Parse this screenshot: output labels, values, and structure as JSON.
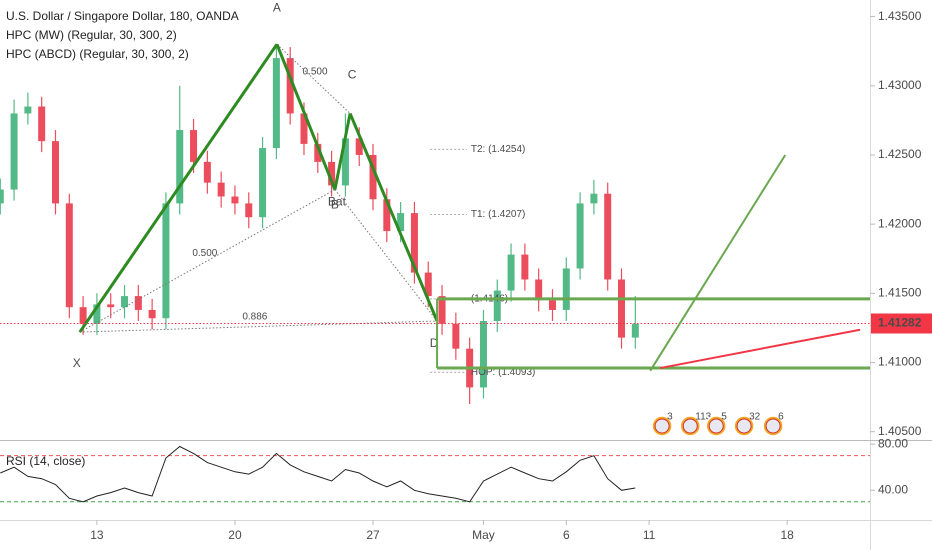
{
  "chart_data": [
    {
      "type": "candlestick",
      "title": "U.S. Dollar / Singapore Dollar, 180, OANDA",
      "indicators": [
        "HPC (MW) (Regular, 30, 300, 2)",
        "HPC (ABCD) (Regular, 30, 300, 2)"
      ],
      "x": [
        -3.5,
        -3,
        -2.5,
        -2,
        -1.5,
        -1,
        -0.5,
        0,
        0.5,
        1,
        1.5,
        2,
        2.5,
        3,
        3.5,
        4,
        4.5,
        5,
        5.5,
        6,
        6.5,
        7,
        7.5,
        8,
        8.5,
        9,
        9.5,
        10,
        10.5,
        11,
        11.5,
        12,
        12.5,
        13,
        13.5,
        14,
        14.5,
        15,
        15.5,
        16,
        16.5,
        17,
        17.5,
        18,
        18.5,
        19,
        19.5
      ],
      "open": [
        1.4215,
        1.4225,
        1.428,
        1.4285,
        1.426,
        1.4215,
        1.414,
        1.4128,
        1.4142,
        1.414,
        1.4148,
        1.4138,
        1.4132,
        1.4215,
        1.4268,
        1.4245,
        1.423,
        1.422,
        1.4215,
        1.4205,
        1.4255,
        1.432,
        1.428,
        1.4258,
        1.4245,
        1.4228,
        1.4262,
        1.425,
        1.4218,
        1.4195,
        1.4208,
        1.4165,
        1.4148,
        1.4128,
        1.411,
        1.4082,
        1.413,
        1.4152,
        1.4178,
        1.416,
        1.4145,
        1.4138,
        1.4168,
        1.4215,
        1.4222,
        1.416,
        1.4118
      ],
      "high": [
        1.4233,
        1.429,
        1.4295,
        1.4292,
        1.4268,
        1.4222,
        1.4148,
        1.415,
        1.415,
        1.4156,
        1.4156,
        1.4146,
        1.4223,
        1.43,
        1.4276,
        1.4253,
        1.4238,
        1.4228,
        1.4223,
        1.4263,
        1.433,
        1.4328,
        1.4288,
        1.4266,
        1.4253,
        1.428,
        1.427,
        1.4258,
        1.4226,
        1.4216,
        1.4216,
        1.4173,
        1.4156,
        1.4136,
        1.4118,
        1.4138,
        1.416,
        1.4186,
        1.4186,
        1.4168,
        1.4153,
        1.4176,
        1.4223,
        1.4232,
        1.423,
        1.4168,
        1.4148
      ],
      "low": [
        1.4207,
        1.4217,
        1.4272,
        1.4252,
        1.4207,
        1.4132,
        1.412,
        1.412,
        1.4132,
        1.4132,
        1.413,
        1.4124,
        1.4124,
        1.4207,
        1.4237,
        1.4222,
        1.4212,
        1.4207,
        1.4197,
        1.4197,
        1.4247,
        1.4272,
        1.425,
        1.4237,
        1.422,
        1.422,
        1.4242,
        1.421,
        1.4187,
        1.4187,
        1.4157,
        1.414,
        1.412,
        1.4102,
        1.407,
        1.4074,
        1.4122,
        1.4144,
        1.4152,
        1.4137,
        1.413,
        1.413,
        1.416,
        1.4207,
        1.4152,
        1.411,
        1.411
      ],
      "close": [
        1.4225,
        1.428,
        1.4285,
        1.426,
        1.4215,
        1.414,
        1.4128,
        1.4142,
        1.414,
        1.4148,
        1.4138,
        1.4132,
        1.4215,
        1.4268,
        1.4245,
        1.423,
        1.422,
        1.4215,
        1.4205,
        1.4255,
        1.432,
        1.428,
        1.4258,
        1.4245,
        1.4228,
        1.4262,
        1.425,
        1.4218,
        1.4195,
        1.4208,
        1.4165,
        1.4148,
        1.4128,
        1.411,
        1.4082,
        1.413,
        1.4152,
        1.4178,
        1.416,
        1.4145,
        1.4138,
        1.4168,
        1.4215,
        1.4222,
        1.416,
        1.4118,
        1.4128
      ],
      "up_color": "#53b987",
      "down_color": "#eb4d5c",
      "xlim": [
        -3.51,
        28.0
      ],
      "ylim": [
        1.4044,
        1.4362
      ],
      "yticks": [
        {
          "value": 1.405,
          "label": "1.40500"
        },
        {
          "value": 1.41,
          "label": "1.41000"
        },
        {
          "value": 1.415,
          "label": "1.41500"
        },
        {
          "value": 1.42,
          "label": "1.42000"
        },
        {
          "value": 1.425,
          "label": "1.42500"
        },
        {
          "value": 1.43,
          "label": "1.43000"
        },
        {
          "value": 1.435,
          "label": "1.43500"
        }
      ],
      "last_price": 1.41282,
      "last_price_color": "#f23645",
      "pattern": {
        "color": "#2e8b22",
        "label": "Bat",
        "points": [
          {
            "label": "X",
            "x": -0.62,
            "y": 1.4122
          },
          {
            "label": "A",
            "x": 6.52,
            "y": 1.433
          },
          {
            "label": "B",
            "x": 8.62,
            "y": 1.4225
          },
          {
            "label": "C",
            "x": 9.17,
            "y": 1.428
          },
          {
            "label": "D",
            "x": 12.32,
            "y": 1.413
          }
        ],
        "ratios": [
          {
            "label": "0.500",
            "x": 7.9,
            "y": 1.431
          },
          {
            "label": "0.500",
            "x": 3.91,
            "y": 1.4179
          },
          {
            "label": "0.886",
            "x": 5.72,
            "y": 1.4133
          }
        ]
      },
      "targets": [
        {
          "label": "T2: (1.4254)",
          "y": 1.4254
        },
        {
          "label": "T1: (1.4207)",
          "y": 1.4207
        },
        {
          "label": "(1.4146)",
          "y": 1.4146
        },
        {
          "label": "HOP: (1.4093)",
          "y": 1.4093
        }
      ],
      "target_x": [
        12.07,
        13.4
      ],
      "zone": {
        "color": "#6aa84f",
        "x": [
          12.32,
          28.0
        ],
        "y": [
          1.4146,
          1.4096
        ]
      },
      "projections": [
        {
          "color": "#6aa84f",
          "x": [
            20.04,
            24.93
          ],
          "y": [
            1.4094,
            1.425
          ]
        },
        {
          "color": "#f23645",
          "x": [
            20.4,
            27.64
          ],
          "y": [
            1.4096,
            1.41237
          ]
        }
      ],
      "events": [
        {
          "label": "3",
          "x": 20.47
        },
        {
          "label": "113",
          "x": 21.49
        },
        {
          "label": "5",
          "x": 22.43
        },
        {
          "label": "32",
          "x": 23.44
        },
        {
          "label": "6",
          "x": 24.49
        }
      ]
    },
    {
      "type": "line",
      "title": "RSI (14, close)",
      "x": [
        -3.5,
        -3,
        -2.5,
        -2,
        -1.5,
        -1,
        -0.5,
        0,
        0.5,
        1,
        1.5,
        2,
        2.5,
        3,
        3.5,
        4,
        4.5,
        5,
        5.5,
        6,
        6.5,
        7,
        7.5,
        8,
        8.5,
        9,
        9.5,
        10,
        10.5,
        11,
        11.5,
        12,
        12.5,
        13,
        13.5,
        14,
        14.5,
        15,
        15.5,
        16,
        16.5,
        17,
        17.5,
        18,
        18.5,
        19,
        19.5
      ],
      "values": [
        55,
        60,
        52,
        50,
        45,
        33,
        30,
        35,
        38,
        42,
        38,
        35,
        68,
        78,
        72,
        64,
        60,
        56,
        54,
        60,
        72,
        62,
        56,
        52,
        48,
        58,
        55,
        48,
        43,
        48,
        40,
        37,
        35,
        33,
        30,
        48,
        54,
        60,
        55,
        50,
        48,
        56,
        66,
        70,
        50,
        40,
        42
      ],
      "color": "#222222",
      "levels": [
        {
          "value": 70,
          "color": "#ef5350"
        },
        {
          "value": 30,
          "color": "#43a047"
        }
      ],
      "xlim": [
        -3.51,
        28.0
      ],
      "ylim": [
        14.2,
        83.6
      ],
      "yticks": [
        {
          "value": 80,
          "label": "80.00"
        },
        {
          "value": 40,
          "label": "40.00"
        }
      ],
      "xticks": [
        {
          "value": 0,
          "label": "13"
        },
        {
          "value": 5,
          "label": "20"
        },
        {
          "value": 10,
          "label": "27"
        },
        {
          "value": 14,
          "label": "May"
        },
        {
          "value": 17,
          "label": "6"
        },
        {
          "value": 20,
          "label": "11"
        },
        {
          "value": 25,
          "label": "18"
        }
      ]
    }
  ]
}
